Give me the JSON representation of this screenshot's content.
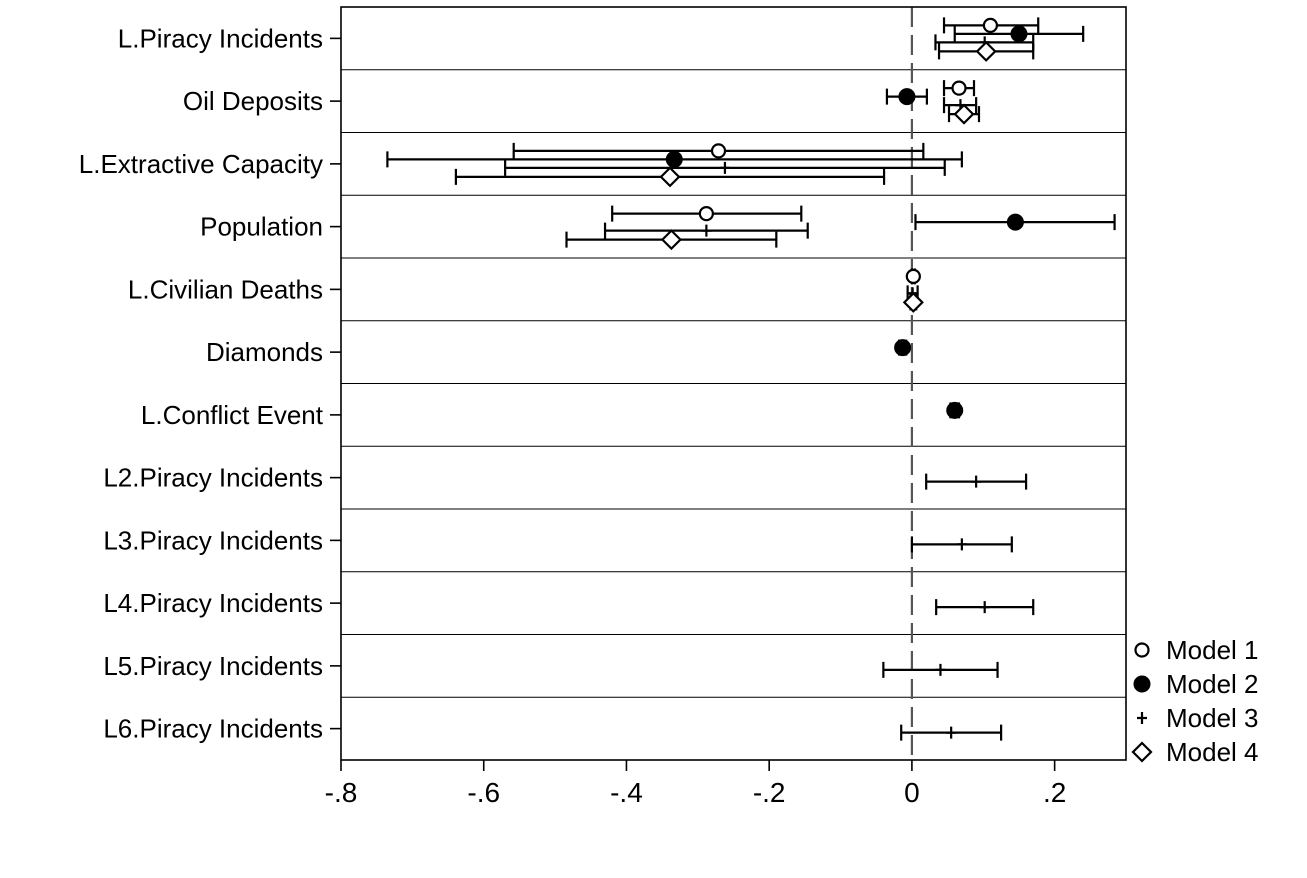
{
  "chart_data": {
    "type": "scatter",
    "subtype": "coefficient plot with confidence intervals",
    "title": "",
    "xlabel": "",
    "ylabel": "",
    "xlim": [
      -0.8,
      0.3
    ],
    "xticks": [
      -0.8,
      -0.6,
      -0.4,
      -0.2,
      0,
      0.2
    ],
    "xtick_labels": [
      "-.8",
      "-.6",
      "-.4",
      "-.2",
      "0",
      ".2"
    ],
    "reference_line": {
      "x": 0,
      "style": "dashed"
    },
    "legend_position": "right",
    "categories": [
      "L.Piracy Incidents",
      "Oil Deposits",
      "L.Extractive Capacity",
      "Population",
      "L.Civilian Deaths",
      "Diamonds",
      "L.Conflict Event",
      "L2.Piracy Incidents",
      "L3.Piracy Incidents",
      "L4.Piracy Incidents",
      "L5.Piracy Incidents",
      "L6.Piracy Incidents"
    ],
    "series": [
      {
        "name": "Model 1",
        "marker": "hollow-circle",
        "points": [
          {
            "category": "L.Piracy Incidents",
            "estimate": 0.11,
            "ci": [
              0.045,
              0.177
            ]
          },
          {
            "category": "Oil Deposits",
            "estimate": 0.066,
            "ci": [
              0.045,
              0.087
            ]
          },
          {
            "category": "L.Extractive Capacity",
            "estimate": -0.271,
            "ci": [
              -0.558,
              0.016
            ]
          },
          {
            "category": "Population",
            "estimate": -0.288,
            "ci": [
              -0.42,
              -0.155
            ]
          },
          {
            "category": "L.Civilian Deaths",
            "estimate": 0.002,
            "ci": [
              0.0,
              0.004
            ]
          }
        ]
      },
      {
        "name": "Model 2",
        "marker": "filled-circle",
        "points": [
          {
            "category": "L.Piracy Incidents",
            "estimate": 0.15,
            "ci": [
              0.06,
              0.24
            ]
          },
          {
            "category": "Oil Deposits",
            "estimate": -0.007,
            "ci": [
              -0.035,
              0.021
            ]
          },
          {
            "category": "L.Extractive Capacity",
            "estimate": -0.333,
            "ci": [
              -0.735,
              0.07
            ]
          },
          {
            "category": "Population",
            "estimate": 0.145,
            "ci": [
              0.005,
              0.284
            ]
          },
          {
            "category": "Diamonds",
            "estimate": -0.013,
            "ci": [
              -0.018,
              -0.008
            ]
          },
          {
            "category": "L.Conflict Event",
            "estimate": 0.06,
            "ci": [
              0.054,
              0.066
            ]
          }
        ]
      },
      {
        "name": "Model 3",
        "marker": "plus",
        "points": [
          {
            "category": "L.Piracy Incidents",
            "estimate": 0.102,
            "ci": [
              0.033,
              0.17
            ]
          },
          {
            "category": "Oil Deposits",
            "estimate": 0.068,
            "ci": [
              0.045,
              0.09
            ]
          },
          {
            "category": "L.Extractive Capacity",
            "estimate": -0.262,
            "ci": [
              -0.57,
              0.046
            ]
          },
          {
            "category": "Population",
            "estimate": -0.288,
            "ci": [
              -0.43,
              -0.146
            ]
          },
          {
            "category": "L.Civilian Deaths",
            "estimate": 0.001,
            "ci": [
              -0.006,
              0.008
            ]
          },
          {
            "category": "L2.Piracy Incidents",
            "estimate": 0.09,
            "ci": [
              0.02,
              0.16
            ]
          },
          {
            "category": "L3.Piracy Incidents",
            "estimate": 0.07,
            "ci": [
              0.0,
              0.14
            ]
          },
          {
            "category": "L4.Piracy Incidents",
            "estimate": 0.102,
            "ci": [
              0.034,
              0.17
            ]
          },
          {
            "category": "L5.Piracy Incidents",
            "estimate": 0.04,
            "ci": [
              -0.04,
              0.12
            ]
          },
          {
            "category": "L6.Piracy Incidents",
            "estimate": 0.055,
            "ci": [
              -0.015,
              0.125
            ]
          }
        ]
      },
      {
        "name": "Model 4",
        "marker": "hollow-diamond",
        "points": [
          {
            "category": "L.Piracy Incidents",
            "estimate": 0.104,
            "ci": [
              0.038,
              0.17
            ]
          },
          {
            "category": "Oil Deposits",
            "estimate": 0.073,
            "ci": [
              0.052,
              0.094
            ]
          },
          {
            "category": "L.Extractive Capacity",
            "estimate": -0.339,
            "ci": [
              -0.639,
              -0.039
            ]
          },
          {
            "category": "Population",
            "estimate": -0.337,
            "ci": [
              -0.484,
              -0.19
            ]
          },
          {
            "category": "L.Civilian Deaths",
            "estimate": 0.002,
            "ci": [
              -0.002,
              0.006
            ]
          }
        ]
      }
    ]
  }
}
